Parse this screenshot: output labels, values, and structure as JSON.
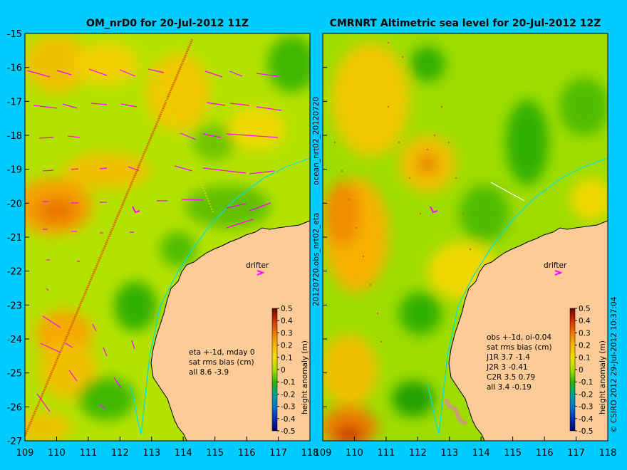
{
  "chart_data": [
    {
      "type": "heatmap",
      "title": "OM_nrD0 for 20-Jul-2012 11Z",
      "xlim": [
        109,
        118
      ],
      "ylim": [
        -27,
        -15
      ],
      "x_ticks": [
        "109",
        "110",
        "111",
        "112",
        "113",
        "114",
        "115",
        "116",
        "117",
        "118"
      ],
      "y_ticks": [
        "-15",
        "-16",
        "-17",
        "-18",
        "-19",
        "-20",
        "-21",
        "-22",
        "-23",
        "-24",
        "-25",
        "-26",
        "-27"
      ],
      "drifter_label": "drifter",
      "stats_lines": [
        "eta +-1d, mday 0",
        "sat rms bias (cm)",
        "all 8.6 -3.9"
      ],
      "colorbar": {
        "label": "height anomaly (m)",
        "ticks": [
          "0.5",
          "0.4",
          "0.3",
          "0.2",
          "0.1",
          "0",
          "-0.1",
          "-0.2",
          "-0.3",
          "-0.4",
          "-0.5"
        ],
        "range": [
          -0.5,
          0.5
        ]
      },
      "vertical_label": "20120720.obs_nrt02_eta"
    },
    {
      "type": "heatmap",
      "title": "CMRNRT Altimetric sea level  for 20-Jul-2012 12Z",
      "xlim": [
        109,
        118
      ],
      "ylim": [
        -27,
        -15
      ],
      "x_ticks": [
        "109",
        "110",
        "111",
        "112",
        "113",
        "114",
        "115",
        "116",
        "117",
        "118"
      ],
      "drifter_label": "drifter",
      "stats_lines": [
        "obs +-1d, oi-0.04",
        "sat rms bias (cm)",
        "J1R   3.7 -1.4",
        "J2R   3 -0.41",
        "C2R   3.5 0.79",
        "all 3.4 -0.19"
      ],
      "colorbar": {
        "label": "height anomaly (m)",
        "ticks": [
          "0.5",
          "0.4",
          "0.3",
          "0.2",
          "0.1",
          "0",
          "-0.1",
          "-0.2",
          "-0.3",
          "-0.4",
          "-0.5"
        ],
        "range": [
          -0.5,
          0.5
        ]
      },
      "vertical_label": "ocean_nrt02_20120720",
      "credit": "© CSIRO 2012   29-Jul-2012 10:37:04"
    }
  ],
  "colors": {
    "background": "#00ccff",
    "land": "#fccb98",
    "field_base": "#a8e000"
  }
}
